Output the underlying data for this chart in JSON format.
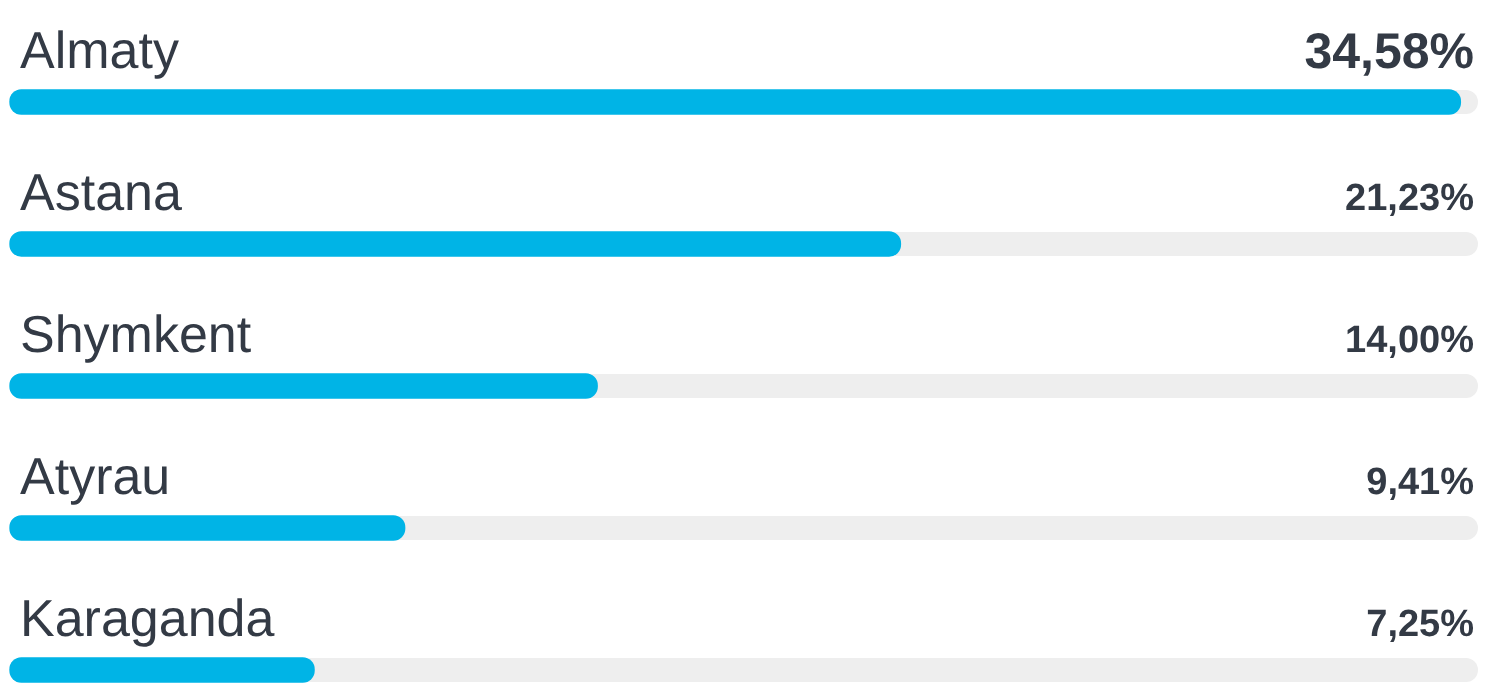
{
  "chart_data": {
    "type": "bar",
    "orientation": "horizontal",
    "data_labels": true,
    "categories": [
      "Almaty",
      "Astana",
      "Shymkent",
      "Atyrau",
      "Karaganda"
    ],
    "values": [
      34.58,
      21.23,
      14.0,
      9.41,
      7.25
    ],
    "value_labels": [
      "34,58%",
      "21,23%",
      "14,00%",
      "9,41%",
      "7,25%"
    ],
    "color": "#00b4e6",
    "legend": false
  }
}
